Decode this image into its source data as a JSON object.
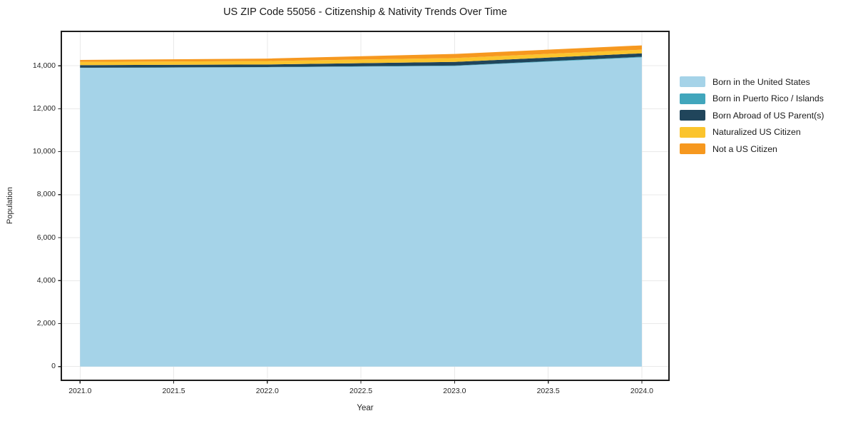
{
  "chart_data": {
    "type": "area",
    "stacked": true,
    "title": "US ZIP Code 55056 - Citizenship & Nativity Trends Over Time",
    "xlabel": "Year",
    "ylabel": "Population",
    "x": [
      2021,
      2022,
      2023,
      2024
    ],
    "series": [
      {
        "name": "Born in the United States",
        "color": "#a5d3e8",
        "values": [
          13900,
          13930,
          13990,
          14390
        ]
      },
      {
        "name": "Born in Puerto Rico / Islands",
        "color": "#41a6bc",
        "values": [
          10,
          10,
          20,
          30
        ]
      },
      {
        "name": "Born Abroad of US Parent(s)",
        "color": "#20455b",
        "values": [
          120,
          120,
          170,
          160
        ]
      },
      {
        "name": "Naturalized US Citizen",
        "color": "#fbc42d",
        "values": [
          150,
          160,
          180,
          170
        ]
      },
      {
        "name": "Not a US Citizen",
        "color": "#f6981f",
        "values": [
          90,
          115,
          190,
          200
        ]
      }
    ],
    "xlim": [
      2020.9,
      2024.145
    ],
    "ylim": [
      -641,
      15600
    ],
    "x_ticks": {
      "values": [
        2021.0,
        2021.5,
        2022.0,
        2022.5,
        2023.0,
        2023.5,
        2024.0
      ],
      "labels": [
        "2021.0",
        "2021.5",
        "2022.0",
        "2022.5",
        "2023.0",
        "2023.5",
        "2024.0"
      ]
    },
    "y_ticks": {
      "values": [
        0,
        2000,
        4000,
        6000,
        8000,
        10000,
        12000,
        14000
      ],
      "labels": [
        "0",
        "2,000",
        "4,000",
        "6,000",
        "8,000",
        "10,000",
        "12,000",
        "14,000"
      ]
    },
    "grid": true,
    "legend_position": "right-outside",
    "style": {
      "grid_color": "#e9e9e9",
      "frame_color": "#1c1c1c",
      "tick_color": "#262626"
    }
  }
}
